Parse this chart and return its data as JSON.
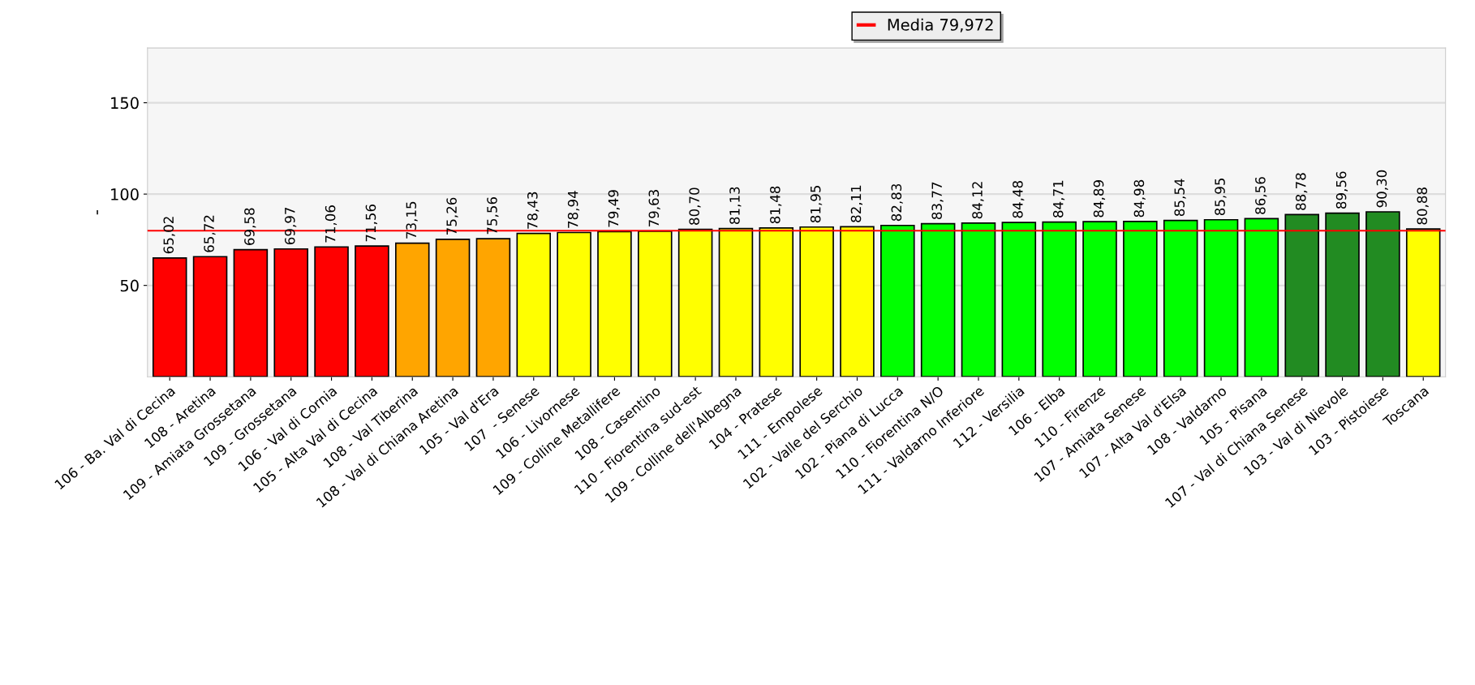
{
  "chart_data": {
    "type": "bar",
    "ylabel": "-",
    "categories": [
      "106 - Ba. Val di Cecina",
      "108 - Aretina",
      "109 - Amiata Grossetana",
      "109 - Grossetana",
      "106 - Val di Cornia",
      "105 - Alta Val di Cecina",
      "108 - Val Tiberina",
      "108 - Val di Chiana Aretina",
      "105 - Val d'Era",
      "107  - Senese",
      "106 - Livornese",
      "109 - Colline Metallifere",
      "108 - Casentino",
      "110 - Fiorentina sud-est",
      "109 - Colline dell'Albegna",
      "104 - Pratese",
      "111 - Empolese",
      "102 - Valle del Serchio",
      "102 - Piana di Lucca",
      "110 - Fiorentina N/O",
      "111 - Valdarno Inferiore",
      "112 - Versilia",
      "106 - Elba",
      "110 - Firenze",
      "107 - Amiata Senese",
      "107 - Alta Val d'Elsa",
      "108 - Valdarno",
      "105 - Pisana",
      "107 - Val di Chiana Senese",
      "103 - Val di Nievole",
      "103 - Pistoiese",
      "Toscana"
    ],
    "values": [
      65.02,
      65.72,
      69.58,
      69.97,
      71.06,
      71.56,
      73.15,
      75.26,
      75.56,
      78.43,
      78.94,
      79.49,
      79.63,
      80.7,
      81.13,
      81.48,
      81.95,
      82.11,
      82.83,
      83.77,
      84.12,
      84.48,
      84.71,
      84.89,
      84.98,
      85.54,
      85.95,
      86.56,
      88.78,
      89.56,
      90.3,
      80.88
    ],
    "value_labels": [
      "65,02",
      "65,72",
      "69,58",
      "69,97",
      "71,06",
      "71,56",
      "73,15",
      "75,26",
      "75,56",
      "78,43",
      "78,94",
      "79,49",
      "79,63",
      "80,70",
      "81,13",
      "81,48",
      "81,95",
      "82,11",
      "82,83",
      "83,77",
      "84,12",
      "84,48",
      "84,71",
      "84,89",
      "84,98",
      "85,54",
      "85,95",
      "86,56",
      "88,78",
      "89,56",
      "90,30",
      "80,88"
    ],
    "colors": [
      "#ff0000",
      "#ff0000",
      "#ff0000",
      "#ff0000",
      "#ff0000",
      "#ff0000",
      "#ffa500",
      "#ffa500",
      "#ffa500",
      "#ffff00",
      "#ffff00",
      "#ffff00",
      "#ffff00",
      "#ffff00",
      "#ffff00",
      "#ffff00",
      "#ffff00",
      "#ffff00",
      "#00ff00",
      "#00ff00",
      "#00ff00",
      "#00ff00",
      "#00ff00",
      "#00ff00",
      "#00ff00",
      "#00ff00",
      "#00ff00",
      "#00ff00",
      "#228b22",
      "#228b22",
      "#228b22",
      "#ffff00"
    ],
    "ylim": [
      0,
      180
    ],
    "yticks": [
      50,
      100,
      150
    ],
    "grid": "y",
    "legend": "top",
    "ref_lines": [
      {
        "axis": "y",
        "value": 79.972,
        "label": "Media 79,972",
        "color": "#ff0000"
      }
    ]
  }
}
